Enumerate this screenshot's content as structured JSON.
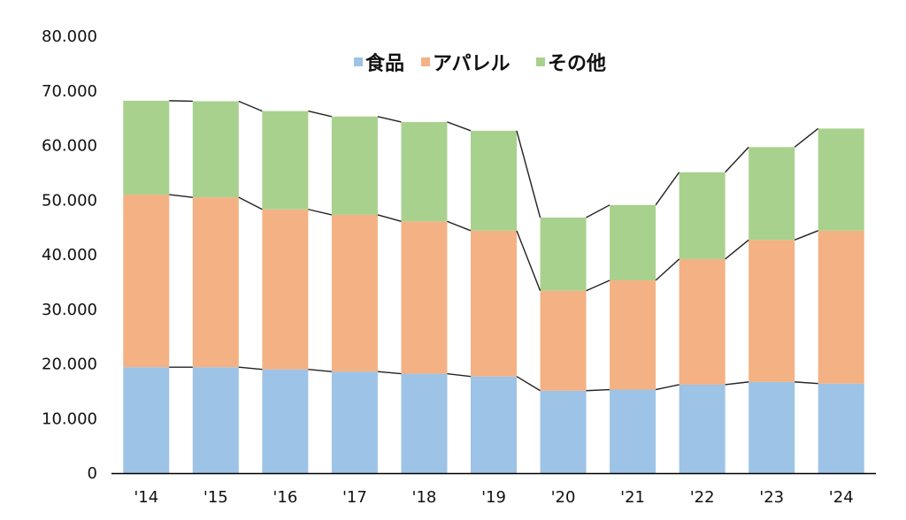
{
  "chart_data": {
    "type": "bar",
    "stacked": true,
    "categories": [
      "'14",
      "'15",
      "'16",
      "'17",
      "'18",
      "'19",
      "'20",
      "'21",
      "'22",
      "'23",
      "'24"
    ],
    "series": [
      {
        "name": "食品",
        "color": "#9dc3e6",
        "values": [
          19400,
          19400,
          19000,
          18600,
          18200,
          17700,
          15100,
          15300,
          16200,
          16700,
          16400
        ]
      },
      {
        "name": "アパレル",
        "color": "#f4b183",
        "values": [
          31600,
          31100,
          29300,
          28700,
          27900,
          26700,
          18300,
          20000,
          23000,
          26000,
          28000
        ]
      },
      {
        "name": "その他",
        "color": "#a9d18e",
        "values": [
          17200,
          17600,
          18000,
          18000,
          18200,
          18300,
          13400,
          13800,
          15900,
          17000,
          18700
        ]
      }
    ],
    "yticks": [
      "0",
      "10.000",
      "20.000",
      "30.000",
      "40.000",
      "50.000",
      "60.000",
      "70.000",
      "80.000"
    ],
    "ylim": [
      0,
      80000
    ],
    "series_lines": true,
    "grid": false,
    "legend_position": "top-center"
  }
}
